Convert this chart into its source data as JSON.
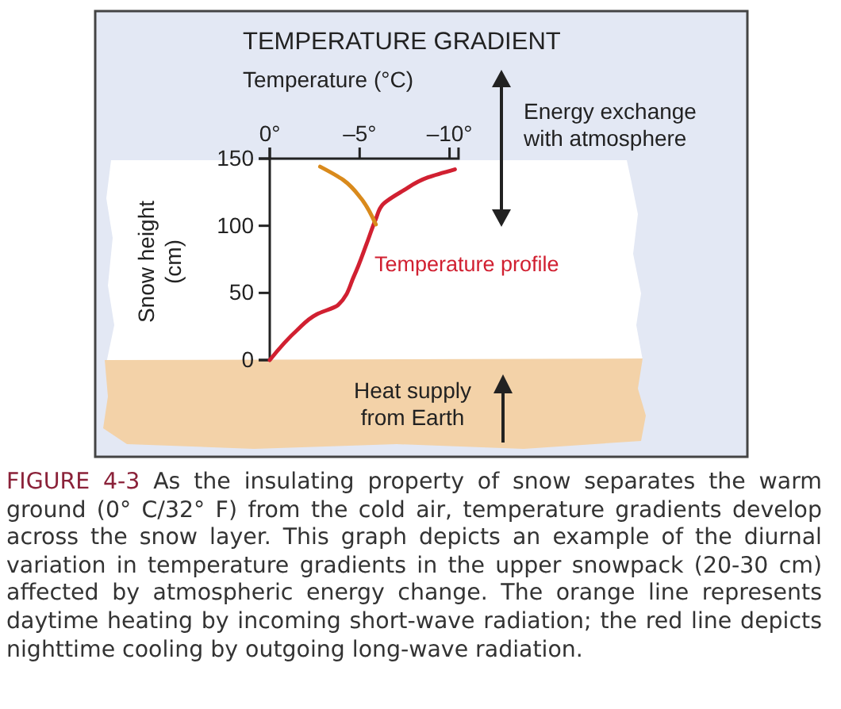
{
  "chart_data": {
    "type": "line",
    "title": "TEMPERATURE GRADIENT",
    "xlabel": "Temperature (°C)",
    "ylabel": "Snow height\n(cm)",
    "xlim": [
      0,
      -10.5
    ],
    "ylim": [
      0,
      150
    ],
    "xticks": [
      {
        "value": 0,
        "label": "0°"
      },
      {
        "value": -5,
        "label": "–5°"
      },
      {
        "value": -10,
        "label": "–10°"
      }
    ],
    "yticks": [
      0,
      50,
      100,
      150
    ],
    "grid": false,
    "marker": "none",
    "line_style": "solid",
    "series": [
      {
        "name": "Temperature profile",
        "color": "#d12031",
        "x": [
          0,
          -1.5,
          -2.6,
          -3.8,
          -4.7,
          -5.4,
          -5.9,
          -6.3,
          -7.4,
          -8.8,
          -10.3
        ],
        "values": [
          0,
          22,
          34,
          41,
          63,
          87,
          105,
          116,
          126,
          136,
          142
        ]
      },
      {
        "color": "#d98a1c",
        "x": [
          -2.8,
          -4.1,
          -5.1,
          -5.9
        ],
        "values": [
          144,
          134,
          120,
          101
        ]
      }
    ],
    "annotations": [
      "Energy exchange\nwith atmosphere",
      "Heat supply\nfrom Earth",
      "FIGURE 4-3",
      "As the insulating property of snow separates the warm ground (0° C/32° F) from the cold air, temperature gradients develop across the snow layer. This graph depicts an example of the diurnal variation in temperature gradients in the upper snowpack (20-30 cm) affected by atmospheric energy change. The orange line represents daytime heating by incoming short-wave radiation; the red line depicts nighttime cooling by outgoing long-wave radiation."
    ]
  }
}
